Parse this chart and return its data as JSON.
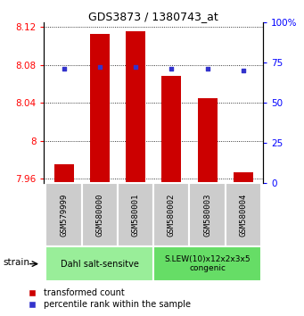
{
  "title": "GDS3873 / 1380743_at",
  "samples": [
    "GSM579999",
    "GSM580000",
    "GSM580001",
    "GSM580002",
    "GSM580003",
    "GSM580004"
  ],
  "red_values": [
    7.975,
    8.113,
    8.115,
    8.068,
    8.045,
    7.967
  ],
  "blue_values": [
    71,
    72,
    72,
    71,
    71,
    70
  ],
  "ylim_left": [
    7.955,
    8.125
  ],
  "ylim_right": [
    0,
    100
  ],
  "yticks_left": [
    7.96,
    8.0,
    8.04,
    8.08,
    8.12
  ],
  "ytick_labels_left": [
    "7.96",
    "8",
    "8.04",
    "8.08",
    "8.12"
  ],
  "yticks_right": [
    0,
    25,
    50,
    75,
    100
  ],
  "ytick_labels_right": [
    "0",
    "25",
    "50",
    "75",
    "100%"
  ],
  "group1_label": "Dahl salt-sensitve",
  "group2_label": "S.LEW(10)x12x2x3x5\ncongenic",
  "group1_indices": [
    0,
    1,
    2
  ],
  "group2_indices": [
    3,
    4,
    5
  ],
  "strain_label": "strain",
  "legend_red": "transformed count",
  "legend_blue": "percentile rank within the sample",
  "bar_color": "#cc0000",
  "dot_color": "#3333cc",
  "group1_color": "#99ee99",
  "group2_color": "#66dd66",
  "tick_label_area_color": "#cccccc",
  "bar_bottom": 7.955,
  "figwidth": 3.41,
  "figheight": 3.54,
  "dpi": 100
}
